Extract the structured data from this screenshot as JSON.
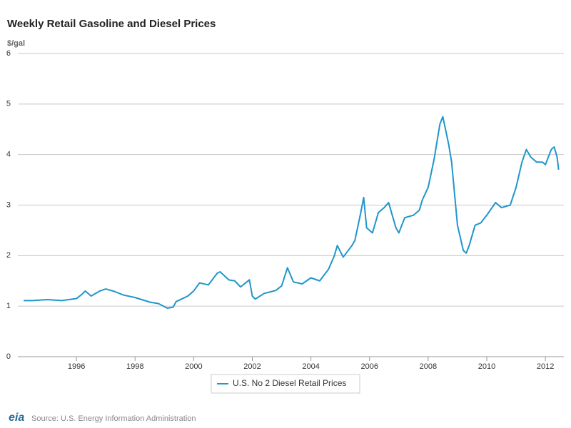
{
  "chart_data": {
    "type": "line",
    "title": "Weekly Retail Gasoline and Diesel Prices",
    "y_label": "$/gal",
    "source": "Source: U.S. Energy Information Administration",
    "logo": "eia",
    "x": [
      1994.2,
      1994.5,
      1995.0,
      1995.5,
      1996.0,
      1996.2,
      1996.3,
      1996.5,
      1996.8,
      1997.0,
      1997.3,
      1997.6,
      1998.0,
      1998.5,
      1998.8,
      1999.1,
      1999.3,
      1999.4,
      1999.8,
      2000.0,
      2000.2,
      2000.5,
      2000.8,
      2000.9,
      2001.2,
      2001.4,
      2001.6,
      2001.9,
      2002.0,
      2002.1,
      2002.4,
      2002.8,
      2003.0,
      2003.2,
      2003.4,
      2003.7,
      2004.0,
      2004.3,
      2004.6,
      2004.8,
      2004.9,
      2005.1,
      2005.4,
      2005.5,
      2005.7,
      2005.8,
      2005.9,
      2006.1,
      2006.3,
      2006.5,
      2006.65,
      2006.9,
      2007.0,
      2007.2,
      2007.5,
      2007.7,
      2007.8,
      2008.0,
      2008.2,
      2008.4,
      2008.5,
      2008.7,
      2008.8,
      2009.0,
      2009.2,
      2009.3,
      2009.4,
      2009.6,
      2009.8,
      2010.0,
      2010.3,
      2010.5,
      2010.8,
      2011.0,
      2011.2,
      2011.35,
      2011.5,
      2011.7,
      2011.9,
      2012.0,
      2012.2,
      2012.3,
      2012.4,
      2012.45
    ],
    "series": [
      {
        "name": "U.S. No 2 Diesel Retail Prices",
        "color": "#1f96cc",
        "values": [
          1.11,
          1.11,
          1.13,
          1.11,
          1.15,
          1.24,
          1.3,
          1.2,
          1.3,
          1.34,
          1.29,
          1.22,
          1.17,
          1.08,
          1.05,
          0.96,
          0.98,
          1.09,
          1.2,
          1.3,
          1.46,
          1.42,
          1.65,
          1.68,
          1.52,
          1.5,
          1.38,
          1.52,
          1.2,
          1.14,
          1.25,
          1.31,
          1.4,
          1.76,
          1.48,
          1.44,
          1.56,
          1.5,
          1.73,
          2.0,
          2.2,
          1.97,
          2.2,
          2.3,
          2.85,
          3.15,
          2.55,
          2.45,
          2.85,
          2.95,
          3.05,
          2.55,
          2.45,
          2.75,
          2.8,
          2.9,
          3.1,
          3.35,
          3.9,
          4.6,
          4.75,
          4.2,
          3.85,
          2.6,
          2.1,
          2.05,
          2.2,
          2.6,
          2.65,
          2.8,
          3.05,
          2.95,
          3.0,
          3.35,
          3.85,
          4.1,
          3.95,
          3.85,
          3.85,
          3.8,
          4.1,
          4.15,
          3.95,
          3.7
        ]
      }
    ],
    "xlim": [
      1994.0,
      2012.63
    ],
    "xticks": [
      1996,
      1998,
      2000,
      2002,
      2004,
      2006,
      2008,
      2010,
      2012
    ],
    "ylim": [
      0,
      6
    ],
    "yticks": [
      0,
      1,
      2,
      3,
      4,
      5,
      6
    ],
    "grid": true
  }
}
